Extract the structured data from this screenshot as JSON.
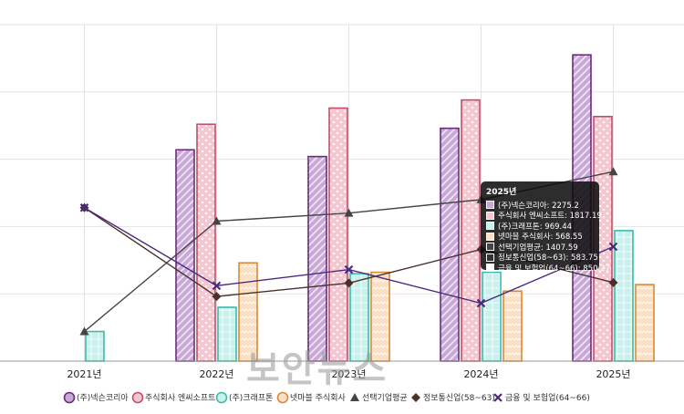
{
  "chart_data": {
    "type": "bar",
    "categories": [
      "2021년",
      "2022년",
      "2023년",
      "2024년",
      "2025년"
    ],
    "ylim": [
      0,
      2500
    ],
    "grid": true,
    "legend_position": "bottom",
    "series": [
      {
        "name": "(주)넥슨코리아",
        "kind": "bar",
        "color": "#6a2d7a",
        "fill": "#c9a8d8",
        "pattern": "diag",
        "values": [
          null,
          1570,
          1520,
          1730,
          2275.2
        ]
      },
      {
        "name": "주식회사 엔씨소프트",
        "kind": "bar",
        "color": "#c0506a",
        "fill": "#f4c6d0",
        "pattern": "dots",
        "values": [
          null,
          1760,
          1880,
          1940,
          1817.19
        ]
      },
      {
        "name": "(주)크래프톤",
        "kind": "bar",
        "color": "#3cbcaa",
        "fill": "#c8f0ec",
        "pattern": "grid",
        "values": [
          220,
          400,
          650,
          660,
          969.44
        ]
      },
      {
        "name": "넷마블 주식회사",
        "kind": "bar",
        "color": "#d88a3a",
        "fill": "#fbe0c4",
        "pattern": "zigzag",
        "values": [
          null,
          730,
          660,
          520,
          568.55
        ]
      },
      {
        "name": "선택기업평균",
        "kind": "line",
        "color": "#444444",
        "marker": "triangle",
        "values": [
          220,
          1040,
          1100,
          1200,
          1407.59
        ]
      },
      {
        "name": "정보통신업(58~63)",
        "kind": "line",
        "color": "#4a3028",
        "marker": "diamond",
        "values": [
          1140,
          480,
          580,
          830,
          583.75
        ]
      },
      {
        "name": "금융 및 보험업(64~66)",
        "kind": "line",
        "color": "#4a2a80",
        "marker": "x",
        "values": [
          1140,
          560,
          680,
          430,
          850.27
        ]
      }
    ]
  },
  "tooltip": {
    "title": "2025년",
    "rows": [
      {
        "text": "(주)넥슨코리아: 2275.2",
        "color": "#c9a8d8"
      },
      {
        "text": "주식회사 엔씨소프트: 1817.19",
        "color": "#f4c6d0"
      },
      {
        "text": "(주)크래프톤: 969.44",
        "color": "#c8f0ec"
      },
      {
        "text": "넷마블 주식회사: 568.55",
        "color": "#fbe0c4"
      },
      {
        "text": "선택기업평균: 1407.59",
        "color": "#444444"
      },
      {
        "text": "정보통신업(58~63): 583.75",
        "color": "#333333"
      },
      {
        "text": "금융 및 보험업(64~66): 850.27",
        "color": "#ffffff"
      }
    ]
  },
  "watermark": "보안뉴스"
}
